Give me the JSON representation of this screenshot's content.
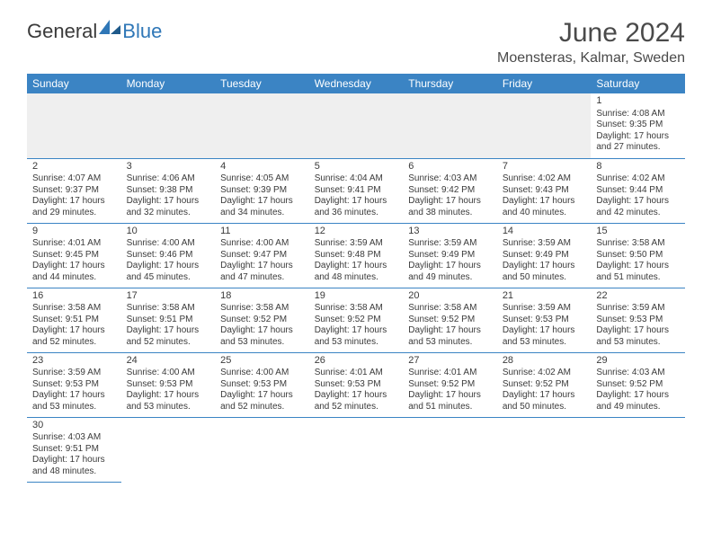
{
  "brand": {
    "part1": "General",
    "part2": "Blue"
  },
  "title": "June 2024",
  "location": "Moensteras, Kalmar, Sweden",
  "colors": {
    "header_bg": "#3b84c4",
    "header_text": "#ffffff",
    "text": "#3a3a3a",
    "rule": "#3b84c4",
    "blank_bg": "#efefef"
  },
  "weekdays": [
    "Sunday",
    "Monday",
    "Tuesday",
    "Wednesday",
    "Thursday",
    "Friday",
    "Saturday"
  ],
  "weeks": [
    [
      null,
      null,
      null,
      null,
      null,
      null,
      {
        "n": "1",
        "sr": "4:08 AM",
        "ss": "9:35 PM",
        "dl": "17 hours and 27 minutes."
      }
    ],
    [
      {
        "n": "2",
        "sr": "4:07 AM",
        "ss": "9:37 PM",
        "dl": "17 hours and 29 minutes."
      },
      {
        "n": "3",
        "sr": "4:06 AM",
        "ss": "9:38 PM",
        "dl": "17 hours and 32 minutes."
      },
      {
        "n": "4",
        "sr": "4:05 AM",
        "ss": "9:39 PM",
        "dl": "17 hours and 34 minutes."
      },
      {
        "n": "5",
        "sr": "4:04 AM",
        "ss": "9:41 PM",
        "dl": "17 hours and 36 minutes."
      },
      {
        "n": "6",
        "sr": "4:03 AM",
        "ss": "9:42 PM",
        "dl": "17 hours and 38 minutes."
      },
      {
        "n": "7",
        "sr": "4:02 AM",
        "ss": "9:43 PM",
        "dl": "17 hours and 40 minutes."
      },
      {
        "n": "8",
        "sr": "4:02 AM",
        "ss": "9:44 PM",
        "dl": "17 hours and 42 minutes."
      }
    ],
    [
      {
        "n": "9",
        "sr": "4:01 AM",
        "ss": "9:45 PM",
        "dl": "17 hours and 44 minutes."
      },
      {
        "n": "10",
        "sr": "4:00 AM",
        "ss": "9:46 PM",
        "dl": "17 hours and 45 minutes."
      },
      {
        "n": "11",
        "sr": "4:00 AM",
        "ss": "9:47 PM",
        "dl": "17 hours and 47 minutes."
      },
      {
        "n": "12",
        "sr": "3:59 AM",
        "ss": "9:48 PM",
        "dl": "17 hours and 48 minutes."
      },
      {
        "n": "13",
        "sr": "3:59 AM",
        "ss": "9:49 PM",
        "dl": "17 hours and 49 minutes."
      },
      {
        "n": "14",
        "sr": "3:59 AM",
        "ss": "9:49 PM",
        "dl": "17 hours and 50 minutes."
      },
      {
        "n": "15",
        "sr": "3:58 AM",
        "ss": "9:50 PM",
        "dl": "17 hours and 51 minutes."
      }
    ],
    [
      {
        "n": "16",
        "sr": "3:58 AM",
        "ss": "9:51 PM",
        "dl": "17 hours and 52 minutes."
      },
      {
        "n": "17",
        "sr": "3:58 AM",
        "ss": "9:51 PM",
        "dl": "17 hours and 52 minutes."
      },
      {
        "n": "18",
        "sr": "3:58 AM",
        "ss": "9:52 PM",
        "dl": "17 hours and 53 minutes."
      },
      {
        "n": "19",
        "sr": "3:58 AM",
        "ss": "9:52 PM",
        "dl": "17 hours and 53 minutes."
      },
      {
        "n": "20",
        "sr": "3:58 AM",
        "ss": "9:52 PM",
        "dl": "17 hours and 53 minutes."
      },
      {
        "n": "21",
        "sr": "3:59 AM",
        "ss": "9:53 PM",
        "dl": "17 hours and 53 minutes."
      },
      {
        "n": "22",
        "sr": "3:59 AM",
        "ss": "9:53 PM",
        "dl": "17 hours and 53 minutes."
      }
    ],
    [
      {
        "n": "23",
        "sr": "3:59 AM",
        "ss": "9:53 PM",
        "dl": "17 hours and 53 minutes."
      },
      {
        "n": "24",
        "sr": "4:00 AM",
        "ss": "9:53 PM",
        "dl": "17 hours and 53 minutes."
      },
      {
        "n": "25",
        "sr": "4:00 AM",
        "ss": "9:53 PM",
        "dl": "17 hours and 52 minutes."
      },
      {
        "n": "26",
        "sr": "4:01 AM",
        "ss": "9:53 PM",
        "dl": "17 hours and 52 minutes."
      },
      {
        "n": "27",
        "sr": "4:01 AM",
        "ss": "9:52 PM",
        "dl": "17 hours and 51 minutes."
      },
      {
        "n": "28",
        "sr": "4:02 AM",
        "ss": "9:52 PM",
        "dl": "17 hours and 50 minutes."
      },
      {
        "n": "29",
        "sr": "4:03 AM",
        "ss": "9:52 PM",
        "dl": "17 hours and 49 minutes."
      }
    ],
    [
      {
        "n": "30",
        "sr": "4:03 AM",
        "ss": "9:51 PM",
        "dl": "17 hours and 48 minutes."
      },
      null,
      null,
      null,
      null,
      null,
      null
    ]
  ],
  "labels": {
    "sunrise": "Sunrise: ",
    "sunset": "Sunset: ",
    "daylight": "Daylight: "
  }
}
